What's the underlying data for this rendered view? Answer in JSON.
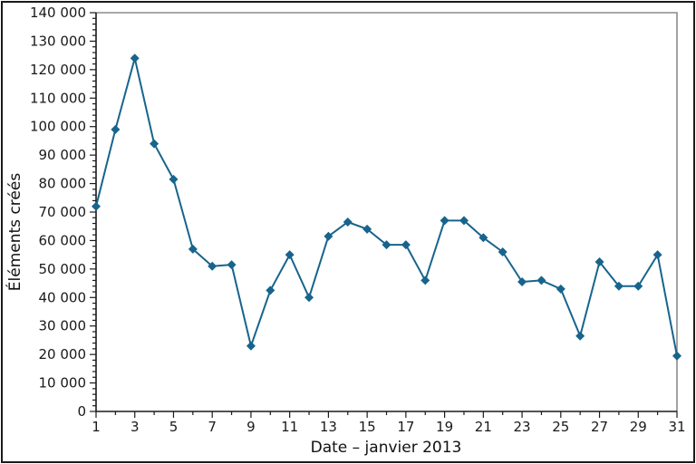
{
  "figure": {
    "background": "#ffffff",
    "outer_border_color": "#1a1a1a"
  },
  "chart_data": {
    "type": "line",
    "title": "",
    "xlabel": "Date – janvier 2013",
    "ylabel": "Éléments créés",
    "x": [
      1,
      2,
      3,
      4,
      5,
      6,
      7,
      8,
      9,
      10,
      11,
      12,
      13,
      14,
      15,
      16,
      17,
      18,
      19,
      20,
      21,
      22,
      23,
      24,
      25,
      26,
      27,
      28,
      29,
      30,
      31
    ],
    "series": [
      {
        "name": "Éléments créés",
        "values": [
          72000,
          99000,
          124000,
          94000,
          81500,
          57000,
          51000,
          51500,
          23000,
          42500,
          55000,
          40000,
          61500,
          66500,
          64000,
          58500,
          58500,
          46000,
          67000,
          67000,
          61000,
          56000,
          45500,
          46000,
          43000,
          26500,
          52500,
          44000,
          44000,
          55000,
          19500
        ]
      }
    ],
    "xlim": [
      1,
      31
    ],
    "ylim": [
      0,
      140000
    ],
    "x_major_tick_step": 2,
    "x_minor_tick_step": 1,
    "y_major_tick_step": 10000,
    "y_minor_tick_step": 2000,
    "x_tick_labels": [
      "1",
      "3",
      "5",
      "7",
      "9",
      "11",
      "13",
      "15",
      "17",
      "19",
      "21",
      "23",
      "25",
      "27",
      "29",
      "31"
    ],
    "y_tick_labels": [
      "0",
      "10 000",
      "20 000",
      "30 000",
      "40 000",
      "50 000",
      "60 000",
      "70 000",
      "80 000",
      "90 000",
      "100 000",
      "110 000",
      "120 000",
      "130 000",
      "140 000"
    ],
    "grid": false,
    "legend": "none",
    "marker": "diamond",
    "line_color": "#17648c",
    "marker_color": "#17648c",
    "axis_color": "#1a1a1a",
    "frame_color": "#8c8c8c",
    "tick_label_color": "#1a1a1a",
    "number_format": "space-thousands"
  }
}
